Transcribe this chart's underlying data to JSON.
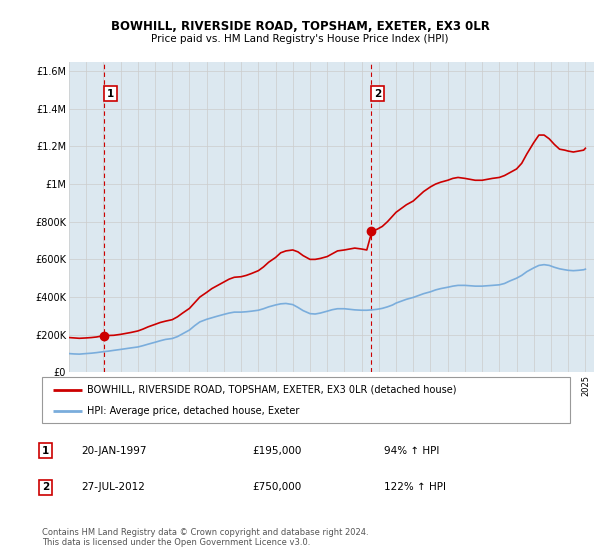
{
  "title1": "BOWHILL, RIVERSIDE ROAD, TOPSHAM, EXETER, EX3 0LR",
  "title2": "Price paid vs. HM Land Registry's House Price Index (HPI)",
  "legend_line1": "BOWHILL, RIVERSIDE ROAD, TOPSHAM, EXETER, EX3 0LR (detached house)",
  "legend_line2": "HPI: Average price, detached house, Exeter",
  "annotation1_label": "1",
  "annotation1_date": "20-JAN-1997",
  "annotation1_price": "£195,000",
  "annotation1_hpi": "94% ↑ HPI",
  "annotation2_label": "2",
  "annotation2_date": "27-JUL-2012",
  "annotation2_price": "£750,000",
  "annotation2_hpi": "122% ↑ HPI",
  "footnote": "Contains HM Land Registry data © Crown copyright and database right 2024.\nThis data is licensed under the Open Government Licence v3.0.",
  "xmin": 1995.0,
  "xmax": 2025.5,
  "ymin": 0,
  "ymax": 1650000,
  "yticks": [
    0,
    200000,
    400000,
    600000,
    800000,
    1000000,
    1200000,
    1400000,
    1600000
  ],
  "ytick_labels": [
    "£0",
    "£200K",
    "£400K",
    "£600K",
    "£800K",
    "£1M",
    "£1.2M",
    "£1.4M",
    "£1.6M"
  ],
  "xticks": [
    1995,
    1996,
    1997,
    1998,
    1999,
    2000,
    2001,
    2002,
    2003,
    2004,
    2005,
    2006,
    2007,
    2008,
    2009,
    2010,
    2011,
    2012,
    2013,
    2014,
    2015,
    2016,
    2017,
    2018,
    2019,
    2020,
    2021,
    2022,
    2023,
    2024,
    2025
  ],
  "line_color": "#cc0000",
  "hpi_color": "#7aaddc",
  "marker_color": "#cc0000",
  "annotation_box_color": "#cc0000",
  "grid_color": "#cccccc",
  "bg_color": "#dce8f0",
  "sale1_x": 1997.05,
  "sale1_y": 195000,
  "sale2_x": 2012.57,
  "sale2_y": 750000,
  "house_price_data": [
    [
      1995.0,
      185000
    ],
    [
      1995.3,
      183000
    ],
    [
      1995.6,
      181000
    ],
    [
      1996.0,
      183000
    ],
    [
      1996.3,
      185000
    ],
    [
      1996.6,
      188000
    ],
    [
      1997.0,
      195000
    ],
    [
      1997.3,
      196000
    ],
    [
      1997.6,
      197000
    ],
    [
      1998.0,
      202000
    ],
    [
      1998.3,
      207000
    ],
    [
      1998.6,
      212000
    ],
    [
      1999.0,
      220000
    ],
    [
      1999.3,
      230000
    ],
    [
      1999.6,
      242000
    ],
    [
      2000.0,
      255000
    ],
    [
      2000.3,
      265000
    ],
    [
      2000.6,
      272000
    ],
    [
      2001.0,
      280000
    ],
    [
      2001.3,
      295000
    ],
    [
      2001.6,
      315000
    ],
    [
      2002.0,
      340000
    ],
    [
      2002.3,
      370000
    ],
    [
      2002.6,
      400000
    ],
    [
      2003.0,
      425000
    ],
    [
      2003.3,
      445000
    ],
    [
      2003.6,
      460000
    ],
    [
      2004.0,
      480000
    ],
    [
      2004.3,
      495000
    ],
    [
      2004.6,
      505000
    ],
    [
      2005.0,
      508000
    ],
    [
      2005.3,
      515000
    ],
    [
      2005.6,
      525000
    ],
    [
      2006.0,
      540000
    ],
    [
      2006.3,
      560000
    ],
    [
      2006.6,
      585000
    ],
    [
      2007.0,
      610000
    ],
    [
      2007.3,
      635000
    ],
    [
      2007.6,
      645000
    ],
    [
      2008.0,
      650000
    ],
    [
      2008.3,
      640000
    ],
    [
      2008.6,
      620000
    ],
    [
      2009.0,
      600000
    ],
    [
      2009.3,
      600000
    ],
    [
      2009.6,
      605000
    ],
    [
      2010.0,
      615000
    ],
    [
      2010.3,
      630000
    ],
    [
      2010.6,
      645000
    ],
    [
      2011.0,
      650000
    ],
    [
      2011.3,
      655000
    ],
    [
      2011.6,
      660000
    ],
    [
      2012.0,
      655000
    ],
    [
      2012.3,
      650000
    ],
    [
      2012.6,
      750000
    ],
    [
      2012.9,
      760000
    ],
    [
      2013.2,
      775000
    ],
    [
      2013.5,
      800000
    ],
    [
      2013.8,
      830000
    ],
    [
      2014.0,
      850000
    ],
    [
      2014.3,
      870000
    ],
    [
      2014.6,
      890000
    ],
    [
      2015.0,
      910000
    ],
    [
      2015.3,
      935000
    ],
    [
      2015.6,
      960000
    ],
    [
      2016.0,
      985000
    ],
    [
      2016.3,
      1000000
    ],
    [
      2016.6,
      1010000
    ],
    [
      2017.0,
      1020000
    ],
    [
      2017.3,
      1030000
    ],
    [
      2017.6,
      1035000
    ],
    [
      2018.0,
      1030000
    ],
    [
      2018.3,
      1025000
    ],
    [
      2018.6,
      1020000
    ],
    [
      2019.0,
      1020000
    ],
    [
      2019.3,
      1025000
    ],
    [
      2019.6,
      1030000
    ],
    [
      2020.0,
      1035000
    ],
    [
      2020.3,
      1045000
    ],
    [
      2020.6,
      1060000
    ],
    [
      2021.0,
      1080000
    ],
    [
      2021.3,
      1110000
    ],
    [
      2021.6,
      1160000
    ],
    [
      2022.0,
      1220000
    ],
    [
      2022.3,
      1260000
    ],
    [
      2022.6,
      1260000
    ],
    [
      2022.9,
      1240000
    ],
    [
      2023.2,
      1210000
    ],
    [
      2023.5,
      1185000
    ],
    [
      2023.8,
      1180000
    ],
    [
      2024.0,
      1175000
    ],
    [
      2024.3,
      1170000
    ],
    [
      2024.6,
      1175000
    ],
    [
      2024.9,
      1180000
    ],
    [
      2025.0,
      1190000
    ]
  ],
  "hpi_data": [
    [
      1995.0,
      100000
    ],
    [
      1995.3,
      98000
    ],
    [
      1995.6,
      97000
    ],
    [
      1996.0,
      100000
    ],
    [
      1996.3,
      102000
    ],
    [
      1996.6,
      105000
    ],
    [
      1997.0,
      110000
    ],
    [
      1997.3,
      113000
    ],
    [
      1997.6,
      117000
    ],
    [
      1998.0,
      122000
    ],
    [
      1998.3,
      126000
    ],
    [
      1998.6,
      130000
    ],
    [
      1999.0,
      135000
    ],
    [
      1999.3,
      142000
    ],
    [
      1999.6,
      150000
    ],
    [
      2000.0,
      160000
    ],
    [
      2000.3,
      168000
    ],
    [
      2000.6,
      175000
    ],
    [
      2001.0,
      180000
    ],
    [
      2001.3,
      190000
    ],
    [
      2001.6,
      205000
    ],
    [
      2002.0,
      225000
    ],
    [
      2002.3,
      248000
    ],
    [
      2002.6,
      268000
    ],
    [
      2003.0,
      282000
    ],
    [
      2003.3,
      290000
    ],
    [
      2003.6,
      298000
    ],
    [
      2004.0,
      308000
    ],
    [
      2004.3,
      315000
    ],
    [
      2004.6,
      320000
    ],
    [
      2005.0,
      320000
    ],
    [
      2005.3,
      322000
    ],
    [
      2005.6,
      325000
    ],
    [
      2006.0,
      330000
    ],
    [
      2006.3,
      338000
    ],
    [
      2006.6,
      348000
    ],
    [
      2007.0,
      358000
    ],
    [
      2007.3,
      364000
    ],
    [
      2007.6,
      366000
    ],
    [
      2008.0,
      360000
    ],
    [
      2008.3,
      345000
    ],
    [
      2008.6,
      328000
    ],
    [
      2009.0,
      312000
    ],
    [
      2009.3,
      310000
    ],
    [
      2009.6,
      315000
    ],
    [
      2010.0,
      325000
    ],
    [
      2010.3,
      333000
    ],
    [
      2010.6,
      338000
    ],
    [
      2011.0,
      338000
    ],
    [
      2011.3,
      335000
    ],
    [
      2011.6,
      332000
    ],
    [
      2012.0,
      330000
    ],
    [
      2012.3,
      330000
    ],
    [
      2012.6,
      332000
    ],
    [
      2012.9,
      335000
    ],
    [
      2013.2,
      340000
    ],
    [
      2013.5,
      348000
    ],
    [
      2013.8,
      358000
    ],
    [
      2014.0,
      368000
    ],
    [
      2014.3,
      378000
    ],
    [
      2014.6,
      388000
    ],
    [
      2015.0,
      398000
    ],
    [
      2015.3,
      408000
    ],
    [
      2015.6,
      418000
    ],
    [
      2016.0,
      428000
    ],
    [
      2016.3,
      438000
    ],
    [
      2016.6,
      445000
    ],
    [
      2017.0,
      452000
    ],
    [
      2017.3,
      458000
    ],
    [
      2017.6,
      462000
    ],
    [
      2018.0,
      462000
    ],
    [
      2018.3,
      460000
    ],
    [
      2018.6,
      458000
    ],
    [
      2019.0,
      458000
    ],
    [
      2019.3,
      460000
    ],
    [
      2019.6,
      462000
    ],
    [
      2020.0,
      465000
    ],
    [
      2020.3,
      472000
    ],
    [
      2020.6,
      485000
    ],
    [
      2021.0,
      500000
    ],
    [
      2021.3,
      515000
    ],
    [
      2021.6,
      535000
    ],
    [
      2022.0,
      555000
    ],
    [
      2022.3,
      568000
    ],
    [
      2022.6,
      572000
    ],
    [
      2022.9,
      568000
    ],
    [
      2023.2,
      558000
    ],
    [
      2023.5,
      550000
    ],
    [
      2023.8,
      545000
    ],
    [
      2024.0,
      542000
    ],
    [
      2024.3,
      540000
    ],
    [
      2024.6,
      542000
    ],
    [
      2024.9,
      545000
    ],
    [
      2025.0,
      548000
    ]
  ]
}
